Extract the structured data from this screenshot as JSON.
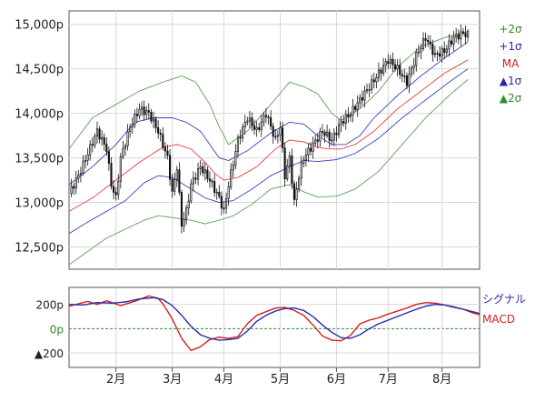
{
  "chart_data": [
    {
      "type": "candlestick",
      "panel": "price",
      "title": "",
      "ylim": [
        12250,
        15150
      ],
      "y_ticks": [
        12500,
        13000,
        13500,
        14000,
        14500,
        15000
      ],
      "y_tick_labels": [
        "12,500p",
        "13,000p",
        "13,500p",
        "14,000p",
        "14,500p",
        "15,000p"
      ],
      "x_ticks": [
        {
          "label": "2月",
          "t": 20
        },
        {
          "label": "3月",
          "t": 44
        },
        {
          "label": "4月",
          "t": 66
        },
        {
          "label": "5月",
          "t": 90
        },
        {
          "label": "6月",
          "t": 114
        },
        {
          "label": "7月",
          "t": 136
        },
        {
          "label": "8月",
          "t": 159
        }
      ],
      "t_range": [
        0,
        175
      ],
      "grid": true,
      "legend_position": "right",
      "legend": [
        {
          "label": "+2σ",
          "color": "#2e8b2e"
        },
        {
          "label": "+1σ",
          "color": "#2a2aa8"
        },
        {
          "label": "MA",
          "color": "#d42020"
        },
        {
          "label": "▲1σ",
          "color": "#2a2aa8"
        },
        {
          "label": "▲2σ",
          "color": "#2e8b2e"
        }
      ],
      "series_keyframes": {
        "ma": [
          [
            0,
            12900
          ],
          [
            10,
            13050
          ],
          [
            20,
            13250
          ],
          [
            30,
            13450
          ],
          [
            40,
            13620
          ],
          [
            46,
            13650
          ],
          [
            52,
            13600
          ],
          [
            58,
            13450
          ],
          [
            62,
            13330
          ],
          [
            66,
            13250
          ],
          [
            72,
            13280
          ],
          [
            80,
            13400
          ],
          [
            88,
            13600
          ],
          [
            94,
            13700
          ],
          [
            100,
            13680
          ],
          [
            106,
            13620
          ],
          [
            110,
            13600
          ],
          [
            116,
            13600
          ],
          [
            122,
            13650
          ],
          [
            130,
            13800
          ],
          [
            140,
            14050
          ],
          [
            150,
            14250
          ],
          [
            160,
            14450
          ],
          [
            170,
            14600
          ]
        ],
        "plus1": [
          [
            0,
            13200
          ],
          [
            10,
            13400
          ],
          [
            20,
            13650
          ],
          [
            28,
            13900
          ],
          [
            36,
            13950
          ],
          [
            44,
            13950
          ],
          [
            50,
            13900
          ],
          [
            56,
            13800
          ],
          [
            60,
            13650
          ],
          [
            64,
            13500
          ],
          [
            68,
            13470
          ],
          [
            76,
            13580
          ],
          [
            86,
            13780
          ],
          [
            94,
            13900
          ],
          [
            100,
            13880
          ],
          [
            106,
            13750
          ],
          [
            112,
            13650
          ],
          [
            118,
            13650
          ],
          [
            124,
            13750
          ],
          [
            130,
            13950
          ],
          [
            140,
            14200
          ],
          [
            150,
            14420
          ],
          [
            160,
            14620
          ],
          [
            170,
            14800
          ]
        ],
        "plus2": [
          [
            0,
            13600
          ],
          [
            10,
            13950
          ],
          [
            20,
            14100
          ],
          [
            30,
            14250
          ],
          [
            40,
            14350
          ],
          [
            48,
            14420
          ],
          [
            54,
            14350
          ],
          [
            60,
            14100
          ],
          [
            64,
            13850
          ],
          [
            68,
            13650
          ],
          [
            76,
            13800
          ],
          [
            86,
            14100
          ],
          [
            94,
            14350
          ],
          [
            100,
            14300
          ],
          [
            106,
            14220
          ],
          [
            112,
            14000
          ],
          [
            116,
            13920
          ],
          [
            124,
            14050
          ],
          [
            132,
            14250
          ],
          [
            140,
            14520
          ],
          [
            150,
            14750
          ],
          [
            160,
            14850
          ],
          [
            170,
            14920
          ]
        ],
        "minus1": [
          [
            0,
            12650
          ],
          [
            8,
            12780
          ],
          [
            16,
            12900
          ],
          [
            24,
            13020
          ],
          [
            32,
            13220
          ],
          [
            38,
            13300
          ],
          [
            44,
            13280
          ],
          [
            52,
            13150
          ],
          [
            58,
            13050
          ],
          [
            64,
            13000
          ],
          [
            70,
            13020
          ],
          [
            78,
            13150
          ],
          [
            86,
            13300
          ],
          [
            94,
            13400
          ],
          [
            100,
            13470
          ],
          [
            106,
            13460
          ],
          [
            114,
            13480
          ],
          [
            122,
            13550
          ],
          [
            132,
            13720
          ],
          [
            142,
            13950
          ],
          [
            152,
            14150
          ],
          [
            162,
            14350
          ],
          [
            170,
            14500
          ]
        ],
        "minus2": [
          [
            0,
            12300
          ],
          [
            8,
            12450
          ],
          [
            16,
            12600
          ],
          [
            24,
            12700
          ],
          [
            32,
            12800
          ],
          [
            38,
            12850
          ],
          [
            44,
            12830
          ],
          [
            52,
            12800
          ],
          [
            58,
            12760
          ],
          [
            64,
            12800
          ],
          [
            70,
            12850
          ],
          [
            78,
            12980
          ],
          [
            86,
            13150
          ],
          [
            94,
            13200
          ],
          [
            100,
            13120
          ],
          [
            106,
            13060
          ],
          [
            114,
            13070
          ],
          [
            122,
            13150
          ],
          [
            132,
            13350
          ],
          [
            142,
            13650
          ],
          [
            152,
            13950
          ],
          [
            162,
            14200
          ],
          [
            170,
            14380
          ]
        ],
        "close": [
          [
            0,
            13100
          ],
          [
            4,
            13300
          ],
          [
            8,
            13550
          ],
          [
            12,
            13800
          ],
          [
            16,
            13600
          ],
          [
            18,
            13200
          ],
          [
            20,
            13050
          ],
          [
            22,
            13500
          ],
          [
            26,
            13850
          ],
          [
            30,
            14050
          ],
          [
            34,
            14000
          ],
          [
            38,
            13800
          ],
          [
            42,
            13500
          ],
          [
            44,
            13100
          ],
          [
            46,
            13400
          ],
          [
            48,
            12750
          ],
          [
            50,
            12900
          ],
          [
            52,
            13200
          ],
          [
            56,
            13400
          ],
          [
            60,
            13250
          ],
          [
            64,
            13050
          ],
          [
            66,
            12900
          ],
          [
            68,
            13200
          ],
          [
            72,
            13700
          ],
          [
            76,
            13950
          ],
          [
            80,
            13800
          ],
          [
            84,
            14000
          ],
          [
            88,
            13700
          ],
          [
            90,
            13850
          ],
          [
            92,
            13300
          ],
          [
            94,
            13500
          ],
          [
            96,
            13000
          ],
          [
            98,
            13300
          ],
          [
            100,
            13500
          ],
          [
            104,
            13650
          ],
          [
            108,
            13800
          ],
          [
            112,
            13700
          ],
          [
            116,
            13900
          ],
          [
            120,
            14000
          ],
          [
            124,
            14150
          ],
          [
            128,
            14300
          ],
          [
            132,
            14450
          ],
          [
            136,
            14600
          ],
          [
            140,
            14500
          ],
          [
            144,
            14350
          ],
          [
            148,
            14650
          ],
          [
            152,
            14850
          ],
          [
            156,
            14650
          ],
          [
            160,
            14700
          ],
          [
            164,
            14850
          ],
          [
            168,
            14900
          ],
          [
            170,
            14880
          ]
        ]
      }
    },
    {
      "type": "line",
      "panel": "macd",
      "title": "",
      "ylim": [
        -320,
        340
      ],
      "y_ticks": [
        200,
        0,
        -200
      ],
      "y_tick_labels": [
        "200p",
        "0p",
        "▲200"
      ],
      "x_ticks": [
        {
          "label": "2月",
          "t": 20
        },
        {
          "label": "3月",
          "t": 44
        },
        {
          "label": "4月",
          "t": 66
        },
        {
          "label": "5月",
          "t": 90
        },
        {
          "label": "6月",
          "t": 114
        },
        {
          "label": "7月",
          "t": 136
        },
        {
          "label": "8月",
          "t": 159
        }
      ],
      "t_range": [
        0,
        175
      ],
      "grid": true,
      "legend_position": "right",
      "series": [
        {
          "name": "MACD",
          "color": "#d42020",
          "points": [
            [
              0,
              185
            ],
            [
              4,
              205
            ],
            [
              8,
              225
            ],
            [
              12,
              200
            ],
            [
              16,
              230
            ],
            [
              22,
              190
            ],
            [
              28,
              225
            ],
            [
              34,
              270
            ],
            [
              38,
              250
            ],
            [
              40,
              205
            ],
            [
              44,
              80
            ],
            [
              48,
              -80
            ],
            [
              52,
              -180
            ],
            [
              56,
              -150
            ],
            [
              60,
              -90
            ],
            [
              64,
              -70
            ],
            [
              68,
              -80
            ],
            [
              72,
              -65
            ],
            [
              76,
              40
            ],
            [
              80,
              110
            ],
            [
              84,
              140
            ],
            [
              88,
              170
            ],
            [
              92,
              175
            ],
            [
              96,
              150
            ],
            [
              100,
              110
            ],
            [
              104,
              30
            ],
            [
              108,
              -60
            ],
            [
              112,
              -95
            ],
            [
              116,
              -100
            ],
            [
              120,
              -55
            ],
            [
              124,
              40
            ],
            [
              128,
              70
            ],
            [
              132,
              90
            ],
            [
              136,
              120
            ],
            [
              140,
              145
            ],
            [
              144,
              170
            ],
            [
              148,
              200
            ],
            [
              152,
              215
            ],
            [
              156,
              210
            ],
            [
              160,
              195
            ],
            [
              164,
              175
            ],
            [
              168,
              160
            ],
            [
              172,
              130
            ],
            [
              175,
              115
            ]
          ]
        },
        {
          "name": "シグナル",
          "color": "#2a2aa8",
          "points": [
            [
              0,
              200
            ],
            [
              6,
              195
            ],
            [
              12,
              215
            ],
            [
              18,
              210
            ],
            [
              24,
              220
            ],
            [
              30,
              245
            ],
            [
              36,
              255
            ],
            [
              40,
              240
            ],
            [
              44,
              190
            ],
            [
              48,
              110
            ],
            [
              52,
              20
            ],
            [
              56,
              -50
            ],
            [
              60,
              -80
            ],
            [
              64,
              -95
            ],
            [
              68,
              -90
            ],
            [
              72,
              -80
            ],
            [
              76,
              -20
            ],
            [
              80,
              60
            ],
            [
              84,
              110
            ],
            [
              88,
              145
            ],
            [
              92,
              165
            ],
            [
              96,
              170
            ],
            [
              100,
              150
            ],
            [
              104,
              100
            ],
            [
              108,
              30
            ],
            [
              112,
              -30
            ],
            [
              116,
              -75
            ],
            [
              120,
              -80
            ],
            [
              124,
              -50
            ],
            [
              128,
              0
            ],
            [
              132,
              40
            ],
            [
              136,
              70
            ],
            [
              140,
              100
            ],
            [
              144,
              130
            ],
            [
              148,
              160
            ],
            [
              152,
              185
            ],
            [
              156,
              200
            ],
            [
              160,
              195
            ],
            [
              164,
              180
            ],
            [
              168,
              160
            ],
            [
              172,
              140
            ],
            [
              175,
              125
            ]
          ]
        }
      ]
    }
  ]
}
